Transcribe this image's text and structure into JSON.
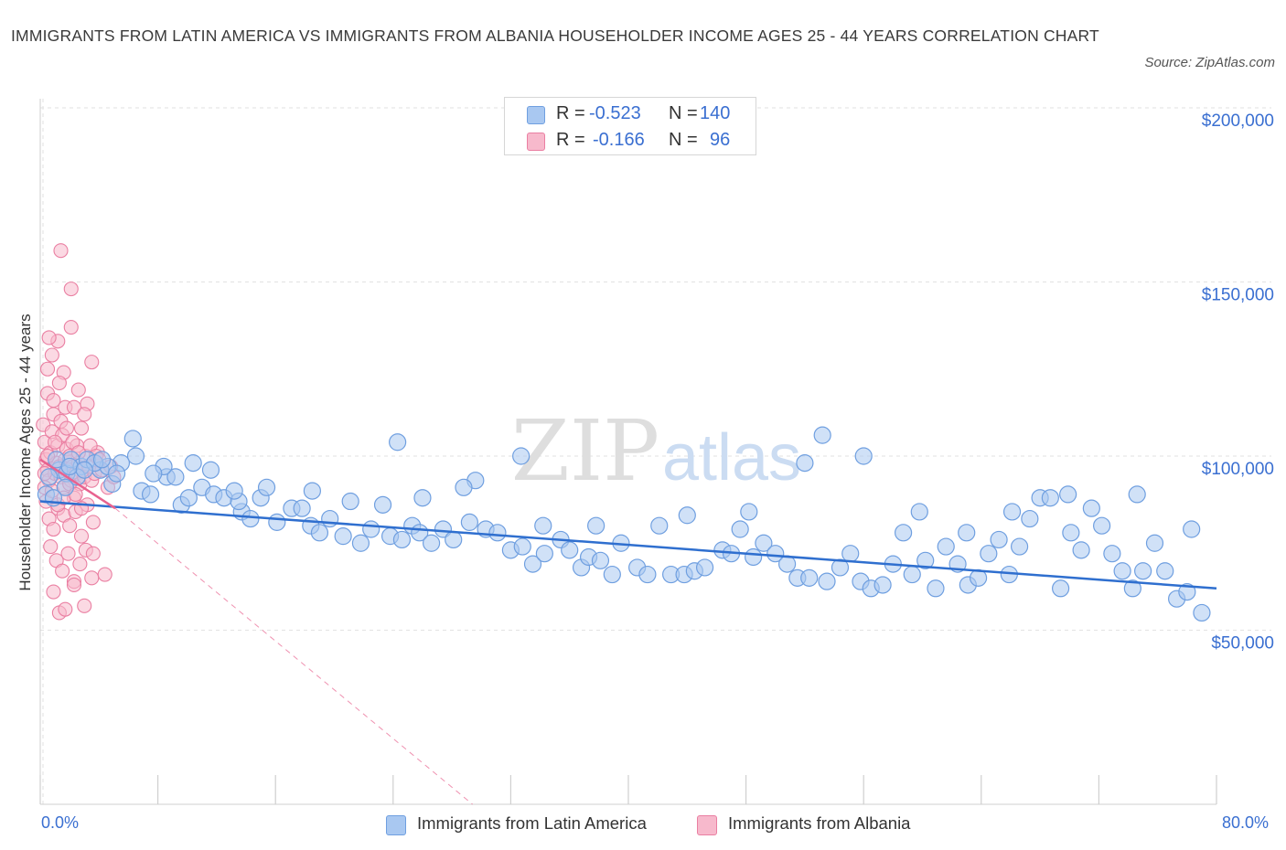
{
  "title": "IMMIGRANTS FROM LATIN AMERICA VS IMMIGRANTS FROM ALBANIA HOUSEHOLDER INCOME AGES 25 - 44 YEARS CORRELATION CHART",
  "source": "Source: ZipAtlas.com",
  "watermark": {
    "zip": "ZIP",
    "atlas": "atlas"
  },
  "legend": {
    "r_label": "R =",
    "n_label": "N =",
    "series1": {
      "r": "-0.523",
      "n": "140"
    },
    "series2": {
      "r": "-0.166",
      "n": "96"
    }
  },
  "colors": {
    "blue_fill": "#a9c8f1",
    "blue_stroke": "#6f9fe0",
    "blue_line": "#2f6fcf",
    "pink_fill": "#f7b9cc",
    "pink_stroke": "#ea7fa2",
    "pink_line": "#e8628f",
    "axis_text": "#3a6fd1",
    "grid": "#e2e2e2"
  },
  "chart_data": {
    "type": "scatter",
    "title": "IMMIGRANTS FROM LATIN AMERICA VS IMMIGRANTS FROM ALBANIA HOUSEHOLDER INCOME AGES 25 - 44 YEARS CORRELATION CHART",
    "xlabel": "",
    "ylabel": "Householder Income Ages 25 - 44 years",
    "xlim": [
      0,
      80
    ],
    "ylim": [
      0,
      200000
    ],
    "x_tick_labels": [
      "0.0%",
      "80.0%"
    ],
    "y_ticks": [
      50000,
      100000,
      150000,
      200000
    ],
    "y_tick_labels": [
      "$50,000",
      "$100,000",
      "$150,000",
      "$200,000"
    ],
    "grid": true,
    "legend_position": "top-center",
    "series": [
      {
        "name": "Immigrants from Latin America",
        "r": -0.523,
        "n": 140,
        "trend": {
          "x": [
            0,
            80
          ],
          "y": [
            87000,
            62000
          ]
        },
        "points": [
          [
            0.4,
            89000
          ],
          [
            1.3,
            96000
          ],
          [
            1.8,
            95000
          ],
          [
            2.1,
            99000
          ],
          [
            2.8,
            97000
          ],
          [
            3.2,
            99000
          ],
          [
            4.1,
            96000
          ],
          [
            4.9,
            92000
          ],
          [
            6.3,
            105000
          ],
          [
            6.9,
            90000
          ],
          [
            7.5,
            89000
          ],
          [
            8.6,
            94000
          ],
          [
            9.6,
            86000
          ],
          [
            10.1,
            88000
          ],
          [
            11.0,
            91000
          ],
          [
            11.8,
            89000
          ],
          [
            12.5,
            88000
          ],
          [
            13.7,
            84000
          ],
          [
            13.5,
            87000
          ],
          [
            14.3,
            82000
          ],
          [
            15.0,
            88000
          ],
          [
            16.1,
            81000
          ],
          [
            17.1,
            85000
          ],
          [
            17.8,
            85000
          ],
          [
            18.4,
            80000
          ],
          [
            19.0,
            78000
          ],
          [
            19.7,
            82000
          ],
          [
            20.6,
            77000
          ],
          [
            21.8,
            75000
          ],
          [
            22.5,
            79000
          ],
          [
            23.8,
            77000
          ],
          [
            24.6,
            76000
          ],
          [
            25.3,
            80000
          ],
          [
            25.8,
            78000
          ],
          [
            26.6,
            75000
          ],
          [
            27.4,
            79000
          ],
          [
            28.1,
            76000
          ],
          [
            29.2,
            81000
          ],
          [
            30.3,
            79000
          ],
          [
            31.1,
            78000
          ],
          [
            32.0,
            73000
          ],
          [
            32.8,
            74000
          ],
          [
            33.5,
            69000
          ],
          [
            34.3,
            72000
          ],
          [
            35.4,
            76000
          ],
          [
            36.0,
            73000
          ],
          [
            36.8,
            68000
          ],
          [
            37.3,
            71000
          ],
          [
            38.1,
            70000
          ],
          [
            38.9,
            66000
          ],
          [
            39.5,
            75000
          ],
          [
            40.6,
            68000
          ],
          [
            41.3,
            66000
          ],
          [
            42.1,
            80000
          ],
          [
            42.9,
            66000
          ],
          [
            43.8,
            66000
          ],
          [
            44.5,
            67000
          ],
          [
            45.2,
            68000
          ],
          [
            46.4,
            73000
          ],
          [
            47.0,
            72000
          ],
          [
            47.6,
            79000
          ],
          [
            48.5,
            71000
          ],
          [
            49.2,
            75000
          ],
          [
            50.0,
            72000
          ],
          [
            50.8,
            69000
          ],
          [
            51.5,
            65000
          ],
          [
            52.3,
            65000
          ],
          [
            53.5,
            64000
          ],
          [
            54.4,
            68000
          ],
          [
            55.1,
            72000
          ],
          [
            55.8,
            64000
          ],
          [
            56.5,
            62000
          ],
          [
            57.3,
            63000
          ],
          [
            58.0,
            69000
          ],
          [
            58.7,
            78000
          ],
          [
            59.3,
            66000
          ],
          [
            60.2,
            70000
          ],
          [
            60.9,
            62000
          ],
          [
            61.6,
            74000
          ],
          [
            62.4,
            69000
          ],
          [
            63.1,
            63000
          ],
          [
            63.8,
            65000
          ],
          [
            64.5,
            72000
          ],
          [
            65.2,
            76000
          ],
          [
            65.9,
            66000
          ],
          [
            66.6,
            74000
          ],
          [
            67.3,
            82000
          ],
          [
            68.0,
            88000
          ],
          [
            68.7,
            88000
          ],
          [
            69.4,
            62000
          ],
          [
            70.1,
            78000
          ],
          [
            70.8,
            73000
          ],
          [
            71.5,
            85000
          ],
          [
            72.2,
            80000
          ],
          [
            72.9,
            72000
          ],
          [
            73.6,
            67000
          ],
          [
            74.3,
            62000
          ],
          [
            75.0,
            67000
          ],
          [
            75.8,
            75000
          ],
          [
            76.5,
            67000
          ],
          [
            77.3,
            59000
          ],
          [
            78.0,
            61000
          ],
          [
            79.0,
            55000
          ],
          [
            32.7,
            100000
          ],
          [
            29.6,
            93000
          ],
          [
            26.0,
            88000
          ],
          [
            23.3,
            86000
          ],
          [
            21.1,
            87000
          ],
          [
            18.5,
            90000
          ],
          [
            15.4,
            91000
          ],
          [
            13.2,
            90000
          ],
          [
            11.6,
            96000
          ],
          [
            10.4,
            98000
          ],
          [
            9.2,
            94000
          ],
          [
            8.4,
            97000
          ],
          [
            7.7,
            95000
          ],
          [
            6.5,
            100000
          ],
          [
            5.5,
            98000
          ],
          [
            4.6,
            97000
          ],
          [
            3.7,
            98000
          ],
          [
            2.5,
            94000
          ],
          [
            1.7,
            91000
          ],
          [
            0.9,
            88000
          ],
          [
            0.6,
            94000
          ],
          [
            1.1,
            99000
          ],
          [
            2.0,
            97000
          ],
          [
            3.0,
            96000
          ],
          [
            4.2,
            99000
          ],
          [
            5.2,
            95000
          ],
          [
            24.3,
            104000
          ],
          [
            28.8,
            91000
          ],
          [
            34.2,
            80000
          ],
          [
            37.8,
            80000
          ],
          [
            44.0,
            83000
          ],
          [
            48.2,
            84000
          ],
          [
            52.0,
            98000
          ],
          [
            53.2,
            106000
          ],
          [
            56.0,
            100000
          ],
          [
            59.8,
            84000
          ],
          [
            63.0,
            78000
          ],
          [
            66.1,
            84000
          ],
          [
            69.9,
            89000
          ],
          [
            74.6,
            89000
          ],
          [
            78.3,
            79000
          ]
        ]
      },
      {
        "name": "Immigrants from Albania",
        "r": -0.166,
        "n": 96,
        "trend": {
          "x": [
            0,
            5.1
          ],
          "y": [
            99000,
            85000
          ]
        },
        "trend_extension": {
          "x": [
            5.1,
            29.4
          ],
          "y": [
            85000,
            0
          ]
        },
        "points": [
          [
            0.2,
            109000
          ],
          [
            0.3,
            104000
          ],
          [
            0.4,
            99000
          ],
          [
            0.5,
            96000
          ],
          [
            0.6,
            93000
          ],
          [
            0.7,
            101000
          ],
          [
            0.8,
            107000
          ],
          [
            0.9,
            112000
          ],
          [
            1.0,
            95000
          ],
          [
            1.1,
            98000
          ],
          [
            1.2,
            103000
          ],
          [
            1.3,
            97000
          ],
          [
            1.4,
            94000
          ],
          [
            1.5,
            106000
          ],
          [
            1.6,
            91000
          ],
          [
            1.7,
            99000
          ],
          [
            1.8,
            102000
          ],
          [
            1.9,
            96000
          ],
          [
            2.0,
            100000
          ],
          [
            2.1,
            93000
          ],
          [
            2.2,
            97000
          ],
          [
            2.3,
            88000
          ],
          [
            2.4,
            95000
          ],
          [
            2.5,
            103000
          ],
          [
            2.6,
            98000
          ],
          [
            2.7,
            92000
          ],
          [
            2.8,
            108000
          ],
          [
            2.9,
            96000
          ],
          [
            3.0,
            94000
          ],
          [
            3.1,
            100000
          ],
          [
            3.3,
            97000
          ],
          [
            3.5,
            93000
          ],
          [
            3.7,
            95000
          ],
          [
            3.9,
            101000
          ],
          [
            4.2,
            96000
          ],
          [
            4.6,
            91000
          ],
          [
            5.0,
            94000
          ],
          [
            0.4,
            87000
          ],
          [
            0.6,
            82000
          ],
          [
            0.9,
            79000
          ],
          [
            1.2,
            85000
          ],
          [
            1.6,
            83000
          ],
          [
            2.0,
            80000
          ],
          [
            2.4,
            84000
          ],
          [
            2.8,
            77000
          ],
          [
            3.2,
            86000
          ],
          [
            3.6,
            81000
          ],
          [
            0.7,
            74000
          ],
          [
            1.1,
            70000
          ],
          [
            1.5,
            67000
          ],
          [
            1.9,
            72000
          ],
          [
            2.3,
            64000
          ],
          [
            2.7,
            69000
          ],
          [
            3.1,
            73000
          ],
          [
            3.5,
            65000
          ],
          [
            0.9,
            61000
          ],
          [
            1.3,
            55000
          ],
          [
            1.7,
            56000
          ],
          [
            2.3,
            63000
          ],
          [
            3.0,
            57000
          ],
          [
            4.4,
            66000
          ],
          [
            0.5,
            125000
          ],
          [
            0.8,
            129000
          ],
          [
            1.2,
            133000
          ],
          [
            1.6,
            124000
          ],
          [
            2.1,
            137000
          ],
          [
            0.5,
            118000
          ],
          [
            0.9,
            116000
          ],
          [
            1.3,
            121000
          ],
          [
            1.7,
            114000
          ],
          [
            2.3,
            114000
          ],
          [
            2.6,
            119000
          ],
          [
            3.2,
            115000
          ],
          [
            3.5,
            127000
          ],
          [
            0.6,
            134000
          ],
          [
            2.1,
            148000
          ],
          [
            1.4,
            159000
          ],
          [
            0.3,
            91000
          ],
          [
            0.3,
            95000
          ],
          [
            0.5,
            100000
          ],
          [
            1.0,
            104000
          ],
          [
            1.4,
            110000
          ],
          [
            1.8,
            108000
          ],
          [
            2.2,
            104000
          ],
          [
            2.6,
            101000
          ],
          [
            3.0,
            112000
          ],
          [
            3.4,
            103000
          ],
          [
            3.8,
            100000
          ],
          [
            0.8,
            90000
          ],
          [
            1.2,
            86000
          ],
          [
            1.6,
            88000
          ],
          [
            2.0,
            92000
          ],
          [
            2.4,
            89000
          ],
          [
            2.8,
            85000
          ],
          [
            3.6,
            72000
          ],
          [
            4.0,
            99000
          ],
          [
            4.8,
            97000
          ]
        ]
      }
    ]
  },
  "bottom_legend": {
    "series1_label": "Immigrants from Latin America",
    "series2_label": "Immigrants from Albania"
  }
}
